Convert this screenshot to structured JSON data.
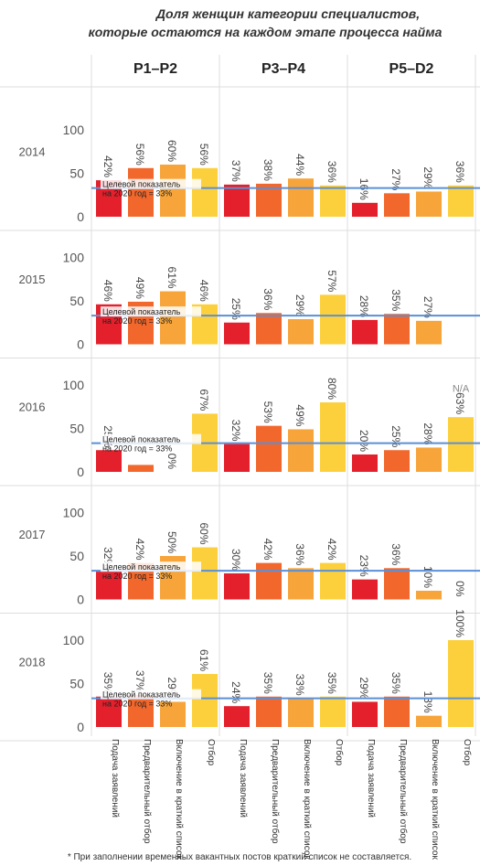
{
  "chart_data": {
    "type": "bar",
    "title": [
      "Доля женщин категории специалистов,",
      "которые остаются на каждом этапе процесса найма"
    ],
    "groups": [
      "P1–P2",
      "P3–P4",
      "P5–D2"
    ],
    "categories": [
      "Подача заявлений",
      "Предварительный отбор",
      "Включение в краткий список",
      "Отбор"
    ],
    "colors": [
      "#e3202b",
      "#f2672c",
      "#f7a53b",
      "#fcd03c"
    ],
    "ylim": [
      0,
      100
    ],
    "yticks": [
      0,
      50,
      100
    ],
    "target": 33,
    "target_color": "#5b8fd6",
    "target_label": [
      "Целевой показатель",
      "на 2020 год = 33%"
    ],
    "panels": [
      {
        "year": "2014",
        "values": [
          [
            42,
            56,
            60,
            56
          ],
          [
            37,
            38,
            44,
            36
          ],
          [
            16,
            27,
            29,
            36
          ]
        ]
      },
      {
        "year": "2015",
        "values": [
          [
            46,
            49,
            61,
            46
          ],
          [
            25,
            36,
            29,
            57
          ],
          [
            28,
            35,
            27,
            null
          ]
        ]
      },
      {
        "year": "2016",
        "values": [
          [
            25,
            8,
            0,
            67
          ],
          [
            32,
            53,
            49,
            80
          ],
          [
            20,
            25,
            28,
            63
          ]
        ],
        "value_labels": [
          [
            "25%",
            null,
            "0%",
            "67%"
          ],
          [
            "32%",
            "53%",
            "49%",
            "80%"
          ],
          [
            "20%",
            "25%",
            "28%",
            "63%"
          ]
        ],
        "annotation": "N/A"
      },
      {
        "year": "2017",
        "values": [
          [
            32,
            42,
            50,
            60
          ],
          [
            30,
            42,
            36,
            42
          ],
          [
            23,
            36,
            10,
            0
          ]
        ]
      },
      {
        "year": "2018",
        "values": [
          [
            35,
            37,
            29,
            61
          ],
          [
            24,
            35,
            33,
            35
          ],
          [
            29,
            35,
            13,
            100
          ]
        ]
      }
    ],
    "footnote": "* При заполнении временных вакантных постов краткий список не составляется."
  }
}
